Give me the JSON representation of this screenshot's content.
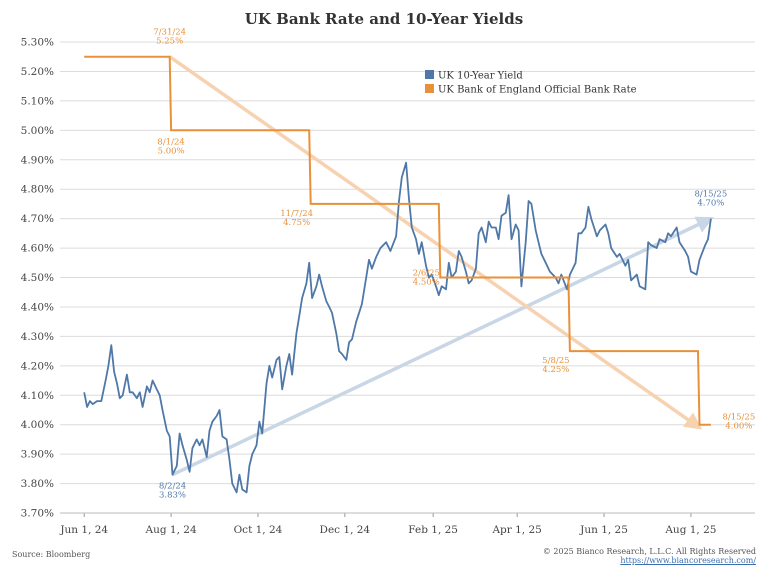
{
  "title": "UK Bank Rate and 10-Year Yields",
  "footer": {
    "source": "Source: Bloomberg",
    "copyright": "© 2025 Bianco Research, L.L.C. All Rights Reserved",
    "url": "https://www.biancoresearch.com/"
  },
  "colors": {
    "yield": "#4f78a8",
    "bank_rate": "#e8913a",
    "trend_up": "#c8d6e6",
    "trend_down": "#f6d2b0",
    "grid": "#dcdcdc"
  },
  "chart_data": {
    "type": "line",
    "title": "UK Bank Rate and 10-Year Yields",
    "ylim": [
      3.7,
      5.3
    ],
    "yticks": [
      "3.70%",
      "3.80%",
      "3.90%",
      "4.00%",
      "4.10%",
      "4.20%",
      "4.30%",
      "4.40%",
      "4.50%",
      "4.60%",
      "4.70%",
      "4.80%",
      "4.90%",
      "5.00%",
      "5.10%",
      "5.20%",
      "5.30%"
    ],
    "xticks": [
      "Jun 1, 24",
      "Aug 1, 24",
      "Oct 1, 24",
      "Dec 1, 24",
      "Feb 1, 25",
      "Apr 1, 25",
      "Jun 1, 25",
      "Aug 1, 25"
    ],
    "x_range": [
      "2024-05-15",
      "2025-09-15"
    ],
    "grid": true,
    "legend_position": "top-right",
    "series": [
      {
        "name": "UK 10-Year Yield",
        "color": "#4f78a8",
        "points": [
          [
            "2024-06-01",
            4.11
          ],
          [
            "2024-06-03",
            4.06
          ],
          [
            "2024-06-05",
            4.08
          ],
          [
            "2024-06-07",
            4.07
          ],
          [
            "2024-06-10",
            4.08
          ],
          [
            "2024-06-13",
            4.08
          ],
          [
            "2024-06-16",
            4.15
          ],
          [
            "2024-06-18",
            4.2
          ],
          [
            "2024-06-20",
            4.27
          ],
          [
            "2024-06-22",
            4.18
          ],
          [
            "2024-06-24",
            4.14
          ],
          [
            "2024-06-26",
            4.09
          ],
          [
            "2024-06-28",
            4.1
          ],
          [
            "2024-07-01",
            4.17
          ],
          [
            "2024-07-03",
            4.11
          ],
          [
            "2024-07-05",
            4.11
          ],
          [
            "2024-07-08",
            4.09
          ],
          [
            "2024-07-10",
            4.11
          ],
          [
            "2024-07-12",
            4.06
          ],
          [
            "2024-07-15",
            4.13
          ],
          [
            "2024-07-17",
            4.11
          ],
          [
            "2024-07-19",
            4.15
          ],
          [
            "2024-07-22",
            4.12
          ],
          [
            "2024-07-24",
            4.1
          ],
          [
            "2024-07-26",
            4.05
          ],
          [
            "2024-07-29",
            3.98
          ],
          [
            "2024-07-31",
            3.96
          ],
          [
            "2024-08-02",
            3.83
          ],
          [
            "2024-08-05",
            3.86
          ],
          [
            "2024-08-07",
            3.97
          ],
          [
            "2024-08-09",
            3.93
          ],
          [
            "2024-08-12",
            3.88
          ],
          [
            "2024-08-14",
            3.84
          ],
          [
            "2024-08-16",
            3.92
          ],
          [
            "2024-08-19",
            3.95
          ],
          [
            "2024-08-21",
            3.93
          ],
          [
            "2024-08-23",
            3.95
          ],
          [
            "2024-08-26",
            3.89
          ],
          [
            "2024-08-28",
            3.98
          ],
          [
            "2024-08-30",
            4.01
          ],
          [
            "2024-09-02",
            4.03
          ],
          [
            "2024-09-04",
            4.05
          ],
          [
            "2024-09-06",
            3.96
          ],
          [
            "2024-09-09",
            3.95
          ],
          [
            "2024-09-11",
            3.88
          ],
          [
            "2024-09-13",
            3.8
          ],
          [
            "2024-09-16",
            3.77
          ],
          [
            "2024-09-18",
            3.83
          ],
          [
            "2024-09-20",
            3.78
          ],
          [
            "2024-09-23",
            3.77
          ],
          [
            "2024-09-25",
            3.86
          ],
          [
            "2024-09-27",
            3.9
          ],
          [
            "2024-09-30",
            3.93
          ],
          [
            "2024-10-02",
            4.01
          ],
          [
            "2024-10-04",
            3.97
          ],
          [
            "2024-10-07",
            4.14
          ],
          [
            "2024-10-09",
            4.2
          ],
          [
            "2024-10-11",
            4.16
          ],
          [
            "2024-10-14",
            4.22
          ],
          [
            "2024-10-16",
            4.23
          ],
          [
            "2024-10-18",
            4.12
          ],
          [
            "2024-10-21",
            4.2
          ],
          [
            "2024-10-23",
            4.24
          ],
          [
            "2024-10-25",
            4.17
          ],
          [
            "2024-10-28",
            4.31
          ],
          [
            "2024-10-30",
            4.37
          ],
          [
            "2024-11-01",
            4.43
          ],
          [
            "2024-11-04",
            4.48
          ],
          [
            "2024-11-06",
            4.55
          ],
          [
            "2024-11-08",
            4.43
          ],
          [
            "2024-11-11",
            4.47
          ],
          [
            "2024-11-13",
            4.51
          ],
          [
            "2024-11-15",
            4.47
          ],
          [
            "2024-11-18",
            4.42
          ],
          [
            "2024-11-20",
            4.4
          ],
          [
            "2024-11-22",
            4.38
          ],
          [
            "2024-11-25",
            4.31
          ],
          [
            "2024-11-27",
            4.25
          ],
          [
            "2024-11-29",
            4.24
          ],
          [
            "2024-12-02",
            4.22
          ],
          [
            "2024-12-04",
            4.28
          ],
          [
            "2024-12-06",
            4.29
          ],
          [
            "2024-12-09",
            4.35
          ],
          [
            "2024-12-11",
            4.38
          ],
          [
            "2024-12-13",
            4.41
          ],
          [
            "2024-12-16",
            4.5
          ],
          [
            "2024-12-18",
            4.56
          ],
          [
            "2024-12-20",
            4.53
          ],
          [
            "2024-12-23",
            4.57
          ],
          [
            "2024-12-26",
            4.6
          ],
          [
            "2024-12-30",
            4.62
          ],
          [
            "2025-01-02",
            4.59
          ],
          [
            "2025-01-06",
            4.64
          ],
          [
            "2025-01-08",
            4.76
          ],
          [
            "2025-01-10",
            4.84
          ],
          [
            "2025-01-13",
            4.89
          ],
          [
            "2025-01-15",
            4.77
          ],
          [
            "2025-01-17",
            4.67
          ],
          [
            "2025-01-20",
            4.63
          ],
          [
            "2025-01-22",
            4.58
          ],
          [
            "2025-01-24",
            4.62
          ],
          [
            "2025-01-27",
            4.54
          ],
          [
            "2025-01-29",
            4.5
          ],
          [
            "2025-01-31",
            4.51
          ],
          [
            "2025-02-03",
            4.47
          ],
          [
            "2025-02-05",
            4.44
          ],
          [
            "2025-02-07",
            4.47
          ],
          [
            "2025-02-10",
            4.46
          ],
          [
            "2025-02-12",
            4.55
          ],
          [
            "2025-02-14",
            4.5
          ],
          [
            "2025-02-17",
            4.52
          ],
          [
            "2025-02-19",
            4.59
          ],
          [
            "2025-02-21",
            4.57
          ],
          [
            "2025-02-24",
            4.52
          ],
          [
            "2025-02-26",
            4.48
          ],
          [
            "2025-02-28",
            4.49
          ],
          [
            "2025-03-03",
            4.53
          ],
          [
            "2025-03-05",
            4.65
          ],
          [
            "2025-03-07",
            4.67
          ],
          [
            "2025-03-10",
            4.62
          ],
          [
            "2025-03-12",
            4.69
          ],
          [
            "2025-03-14",
            4.67
          ],
          [
            "2025-03-17",
            4.67
          ],
          [
            "2025-03-19",
            4.63
          ],
          [
            "2025-03-21",
            4.71
          ],
          [
            "2025-03-24",
            4.72
          ],
          [
            "2025-03-26",
            4.78
          ],
          [
            "2025-03-28",
            4.63
          ],
          [
            "2025-03-31",
            4.68
          ],
          [
            "2025-04-02",
            4.66
          ],
          [
            "2025-04-04",
            4.47
          ],
          [
            "2025-04-07",
            4.62
          ],
          [
            "2025-04-09",
            4.76
          ],
          [
            "2025-04-11",
            4.75
          ],
          [
            "2025-04-14",
            4.66
          ],
          [
            "2025-04-16",
            4.62
          ],
          [
            "2025-04-18",
            4.58
          ],
          [
            "2025-04-22",
            4.54
          ],
          [
            "2025-04-24",
            4.52
          ],
          [
            "2025-04-28",
            4.5
          ],
          [
            "2025-04-30",
            4.48
          ],
          [
            "2025-05-02",
            4.51
          ],
          [
            "2025-05-06",
            4.46
          ],
          [
            "2025-05-08",
            4.51
          ],
          [
            "2025-05-12",
            4.55
          ],
          [
            "2025-05-14",
            4.65
          ],
          [
            "2025-05-16",
            4.65
          ],
          [
            "2025-05-19",
            4.67
          ],
          [
            "2025-05-21",
            4.74
          ],
          [
            "2025-05-23",
            4.7
          ],
          [
            "2025-05-27",
            4.64
          ],
          [
            "2025-05-29",
            4.66
          ],
          [
            "2025-06-02",
            4.68
          ],
          [
            "2025-06-04",
            4.65
          ],
          [
            "2025-06-06",
            4.6
          ],
          [
            "2025-06-10",
            4.57
          ],
          [
            "2025-06-12",
            4.58
          ],
          [
            "2025-06-16",
            4.54
          ],
          [
            "2025-06-18",
            4.56
          ],
          [
            "2025-06-20",
            4.49
          ],
          [
            "2025-06-24",
            4.51
          ],
          [
            "2025-06-26",
            4.47
          ],
          [
            "2025-06-30",
            4.46
          ],
          [
            "2025-07-02",
            4.62
          ],
          [
            "2025-07-04",
            4.61
          ],
          [
            "2025-07-08",
            4.6
          ],
          [
            "2025-07-10",
            4.63
          ],
          [
            "2025-07-14",
            4.62
          ],
          [
            "2025-07-16",
            4.65
          ],
          [
            "2025-07-18",
            4.64
          ],
          [
            "2025-07-22",
            4.67
          ],
          [
            "2025-07-24",
            4.62
          ],
          [
            "2025-07-28",
            4.59
          ],
          [
            "2025-07-30",
            4.57
          ],
          [
            "2025-08-01",
            4.52
          ],
          [
            "2025-08-05",
            4.51
          ],
          [
            "2025-08-07",
            4.56
          ],
          [
            "2025-08-11",
            4.61
          ],
          [
            "2025-08-13",
            4.63
          ],
          [
            "2025-08-15",
            4.7
          ]
        ]
      },
      {
        "name": "UK Bank of England Official Bank Rate",
        "color": "#e8913a",
        "step": true,
        "points": [
          [
            "2024-06-01",
            5.25
          ],
          [
            "2024-07-31",
            5.25
          ],
          [
            "2024-08-01",
            5.0
          ],
          [
            "2024-11-06",
            5.0
          ],
          [
            "2024-11-07",
            4.75
          ],
          [
            "2025-02-05",
            4.75
          ],
          [
            "2025-02-06",
            4.5
          ],
          [
            "2025-05-07",
            4.5
          ],
          [
            "2025-05-08",
            4.25
          ],
          [
            "2025-08-06",
            4.25
          ],
          [
            "2025-08-07",
            4.0
          ],
          [
            "2025-08-15",
            4.0
          ]
        ]
      }
    ],
    "trend_lines": [
      {
        "from": [
          "2024-08-02",
          3.83
        ],
        "to": [
          "2025-08-15",
          4.7
        ],
        "color": "#c8d6e6"
      },
      {
        "from": [
          "2024-07-31",
          5.25
        ],
        "to": [
          "2025-08-07",
          3.99
        ],
        "color": "#f6d2b0"
      }
    ],
    "annotations": [
      {
        "date": "7/31/24",
        "value": "5.25%",
        "x": "2024-07-31",
        "y": 5.25,
        "color": "#e8913a",
        "pos": "above"
      },
      {
        "date": "8/1/24",
        "value": "5.00%",
        "x": "2024-08-01",
        "y": 5.0,
        "color": "#e8913a",
        "pos": "below"
      },
      {
        "date": "11/7/24",
        "value": "4.75%",
        "x": "2024-11-07",
        "y": 4.75,
        "color": "#e8913a",
        "pos": "below-left"
      },
      {
        "date": "2/6/25",
        "value": "4.50%",
        "x": "2025-02-06",
        "y": 4.5,
        "color": "#e8913a",
        "pos": "left"
      },
      {
        "date": "5/8/25",
        "value": "4.25%",
        "x": "2025-05-08",
        "y": 4.25,
        "color": "#e8913a",
        "pos": "below-left"
      },
      {
        "date": "8/15/25",
        "value": "4.00%",
        "x": "2025-08-15",
        "y": 4.0,
        "color": "#e8913a",
        "pos": "right"
      },
      {
        "date": "8/2/24",
        "value": "3.83%",
        "x": "2024-08-02",
        "y": 3.83,
        "color": "#4f78a8",
        "pos": "below"
      },
      {
        "date": "8/15/25",
        "value": "4.70%",
        "x": "2025-08-15",
        "y": 4.7,
        "color": "#4f78a8",
        "pos": "above"
      }
    ]
  }
}
